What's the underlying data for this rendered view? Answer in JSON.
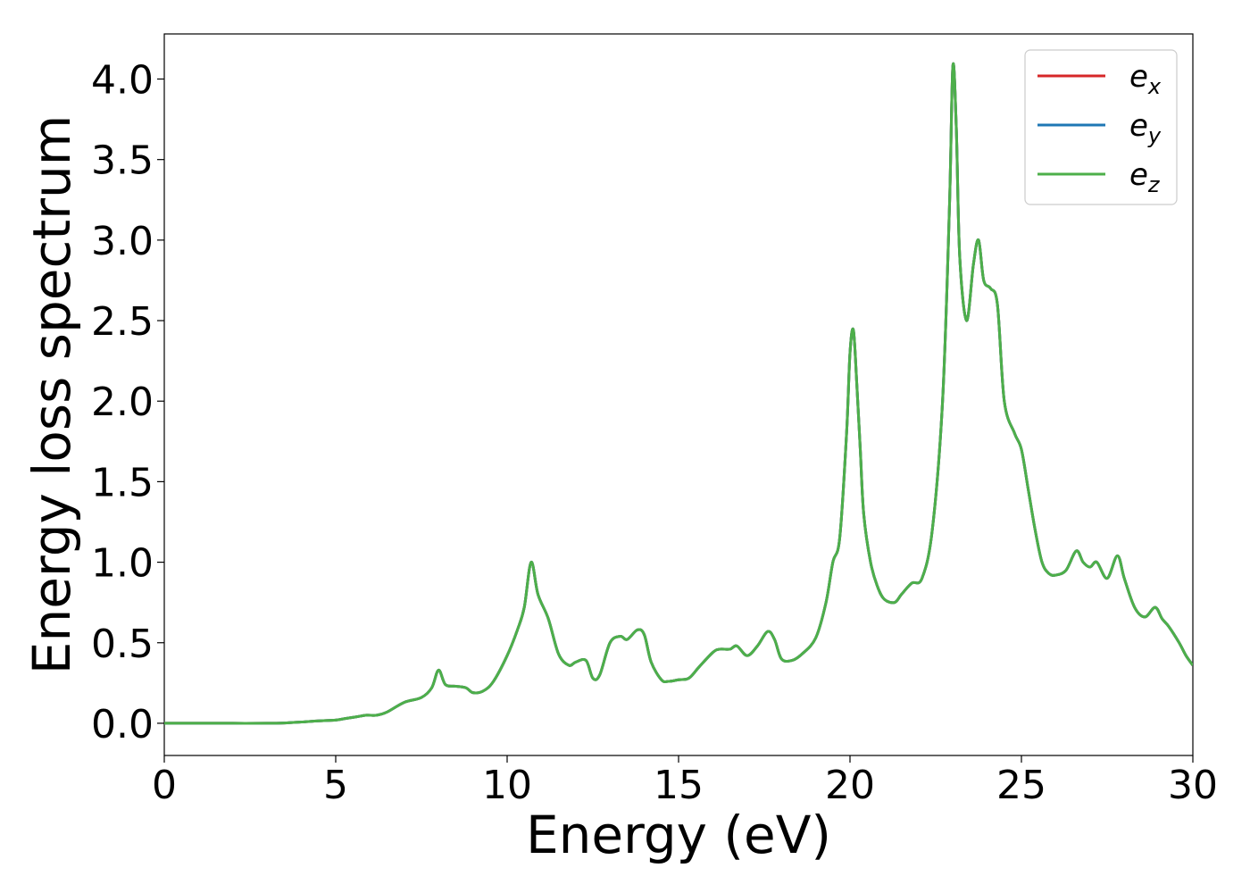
{
  "chart_data": {
    "type": "line",
    "title": "",
    "xlabel": "Energy (eV)",
    "ylabel": "Energy loss spectrum",
    "xlim": [
      0,
      30
    ],
    "ylim": [
      -0.2,
      4.28
    ],
    "xticks": [
      0,
      5,
      10,
      15,
      20,
      25,
      30
    ],
    "yticks": [
      0.0,
      0.5,
      1.0,
      1.5,
      2.0,
      2.5,
      3.0,
      3.5,
      4.0
    ],
    "xtick_labels": [
      "0",
      "5",
      "10",
      "15",
      "20",
      "25",
      "30"
    ],
    "ytick_labels": [
      "0.0",
      "0.5",
      "1.0",
      "1.5",
      "2.0",
      "2.5",
      "3.0",
      "3.5",
      "4.0"
    ],
    "grid": false,
    "legend_position": "top-right",
    "x": [
      0,
      1,
      2,
      3,
      3.5,
      4,
      4.5,
      5,
      5.3,
      5.6,
      5.9,
      6.2,
      6.5,
      7.0,
      7.5,
      7.8,
      8.0,
      8.2,
      8.5,
      8.8,
      9.0,
      9.3,
      9.6,
      10.0,
      10.3,
      10.5,
      10.7,
      10.9,
      11.2,
      11.5,
      11.8,
      12.0,
      12.3,
      12.5,
      12.7,
      13.0,
      13.3,
      13.5,
      13.8,
      14.0,
      14.2,
      14.5,
      14.7,
      15.0,
      15.3,
      15.6,
      16.0,
      16.2,
      16.5,
      16.7,
      17.0,
      17.3,
      17.6,
      17.8,
      18.0,
      18.3,
      18.6,
      19.0,
      19.3,
      19.5,
      19.7,
      19.9,
      20.0,
      20.1,
      20.2,
      20.3,
      20.4,
      20.6,
      20.8,
      21.0,
      21.3,
      21.5,
      21.8,
      22.1,
      22.4,
      22.7,
      22.9,
      23.0,
      23.1,
      23.2,
      23.4,
      23.6,
      23.75,
      23.9,
      24.1,
      24.3,
      24.5,
      24.8,
      25.0,
      25.2,
      25.4,
      25.6,
      25.8,
      26.0,
      26.3,
      26.6,
      26.8,
      27.0,
      27.2,
      27.5,
      27.8,
      28.0,
      28.3,
      28.6,
      28.9,
      29.1,
      29.3,
      29.6,
      29.8,
      30.0
    ],
    "series": [
      {
        "name": "e_x",
        "label_base": "e",
        "label_sub": "x",
        "color": "#d62728"
      },
      {
        "name": "e_y",
        "label_base": "e",
        "label_sub": "y",
        "color": "#1f77b4"
      },
      {
        "name": "e_z",
        "label_base": "e",
        "label_sub": "z",
        "color": "#4daf4a"
      }
    ],
    "y": [
      0,
      0,
      0,
      0,
      0.002,
      0.008,
      0.015,
      0.02,
      0.03,
      0.04,
      0.05,
      0.05,
      0.07,
      0.13,
      0.16,
      0.22,
      0.33,
      0.24,
      0.23,
      0.22,
      0.19,
      0.2,
      0.26,
      0.42,
      0.58,
      0.72,
      1.0,
      0.8,
      0.65,
      0.43,
      0.36,
      0.38,
      0.39,
      0.28,
      0.3,
      0.5,
      0.54,
      0.52,
      0.58,
      0.55,
      0.38,
      0.27,
      0.26,
      0.27,
      0.28,
      0.35,
      0.44,
      0.46,
      0.46,
      0.48,
      0.42,
      0.48,
      0.57,
      0.52,
      0.4,
      0.39,
      0.43,
      0.53,
      0.75,
      1.0,
      1.15,
      1.8,
      2.3,
      2.44,
      2.1,
      1.7,
      1.3,
      1.0,
      0.85,
      0.77,
      0.75,
      0.8,
      0.87,
      0.9,
      1.2,
      2.0,
      3.2,
      4.08,
      3.7,
      2.9,
      2.5,
      2.85,
      3.0,
      2.75,
      2.7,
      2.6,
      2.0,
      1.8,
      1.7,
      1.45,
      1.2,
      1.0,
      0.93,
      0.92,
      0.95,
      1.07,
      1.0,
      0.97,
      1.0,
      0.9,
      1.04,
      0.9,
      0.72,
      0.66,
      0.72,
      0.65,
      0.6,
      0.5,
      0.42,
      0.36
    ]
  },
  "legend": {
    "items": [
      {
        "base": "e",
        "sub": "x",
        "color": "#d62728"
      },
      {
        "base": "e",
        "sub": "y",
        "color": "#1f77b4"
      },
      {
        "base": "e",
        "sub": "z",
        "color": "#4daf4a"
      }
    ]
  }
}
